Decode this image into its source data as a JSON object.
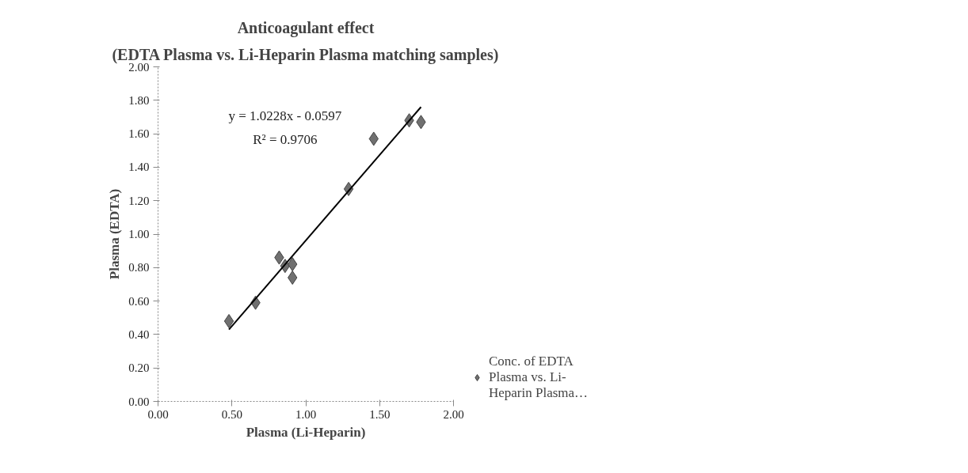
{
  "chart_data": {
    "type": "scatter",
    "title": "Anticoagulant effect",
    "subtitle": "(EDTA Plasma vs. Li-Heparin Plasma matching samples)",
    "xlabel": "Plasma (Li-Heparin)",
    "ylabel": "Plasma (EDTA)",
    "annotations": [
      "y = 1.0228x - 0.0597",
      "R² = 0.9706"
    ],
    "series": [
      {
        "name": "Conc. of EDTA Plasma vs. Li-Heparin Plasma…",
        "color": "#707070",
        "marker": "diamond",
        "x": [
          0.48,
          0.66,
          0.82,
          0.86,
          0.91,
          0.91,
          1.29,
          1.46,
          1.7,
          1.78
        ],
        "values": [
          0.48,
          0.59,
          0.86,
          0.81,
          0.82,
          0.74,
          1.27,
          1.57,
          1.68,
          1.67
        ]
      },
      {
        "type": "line",
        "color": "#000000",
        "x": [
          0.48,
          1.78
        ],
        "values": [
          0.43,
          1.76
        ]
      }
    ],
    "xlim": [
      0,
      2
    ],
    "ylim": [
      0,
      2
    ],
    "xticks": [
      {
        "value": 0,
        "label": "0.00"
      },
      {
        "value": 0.5,
        "label": "0.50"
      },
      {
        "value": 1,
        "label": "1.00"
      },
      {
        "value": 1.5,
        "label": "1.50"
      },
      {
        "value": 2,
        "label": "2.00"
      }
    ],
    "yticks": [
      {
        "value": 0,
        "label": "0.00"
      },
      {
        "value": 0.2,
        "label": "0.20"
      },
      {
        "value": 0.4,
        "label": "0.40"
      },
      {
        "value": 0.6,
        "label": "0.60"
      },
      {
        "value": 0.8,
        "label": "0.80"
      },
      {
        "value": 1.0,
        "label": "1.00"
      },
      {
        "value": 1.2,
        "label": "1.20"
      },
      {
        "value": 1.4,
        "label": "1.40"
      },
      {
        "value": 1.6,
        "label": "1.60"
      },
      {
        "value": 1.8,
        "label": "1.80"
      },
      {
        "value": 2.0,
        "label": "2.00"
      }
    ],
    "grid": false,
    "legend": "right"
  }
}
